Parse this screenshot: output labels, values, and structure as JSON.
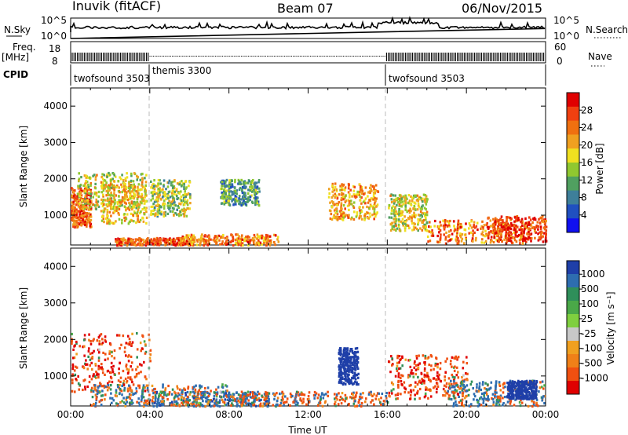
{
  "header": {
    "station": "Inuvik (fitACF)",
    "beam": "Beam 07",
    "date": "06/Nov/2015"
  },
  "top_panels": {
    "nsky_label": "N.Sky",
    "nsky_ticks": [
      "10^5",
      "10^0"
    ],
    "nsearch_label": "N.Search",
    "nsearch_ticks": [
      "10^5",
      "10^0"
    ],
    "freq_label": "Freq.",
    "freq_unit": "[MHz]",
    "freq_ticks": [
      "18",
      "8"
    ],
    "nave_label": "Nave",
    "nave_ticks": [
      "60",
      "0"
    ],
    "cpid_label": "CPID",
    "cpid_segments": [
      {
        "label": "twofsound 3503",
        "start_hour": 0,
        "end_hour": 4
      },
      {
        "label": "themis 3300",
        "start_hour": 4,
        "end_hour": 16
      },
      {
        "label": "twofsound 3503",
        "start_hour": 16,
        "end_hour": 24
      }
    ]
  },
  "chart_data": [
    {
      "type": "heatmap",
      "name": "power",
      "ylabel": "Slant Range [km]",
      "xlabel": "",
      "xlim": [
        0,
        24
      ],
      "ylim": [
        180,
        4500
      ],
      "yticks": [
        "1000",
        "2000",
        "3000",
        "4000"
      ],
      "colorbar": {
        "label": "Power [dB]",
        "ticks": [
          "4",
          "8",
          "12",
          "16",
          "20",
          "24",
          "28"
        ],
        "colors": [
          "#1010f0",
          "#2050c0",
          "#3e7f9a",
          "#50a060",
          "#90c830",
          "#f0e020",
          "#f0a020",
          "#f07010",
          "#f04010",
          "#e00000"
        ]
      },
      "scatter_regions": [
        {
          "x": [
            0.0,
            1.0
          ],
          "y": [
            700,
            1800
          ],
          "value": 26
        },
        {
          "x": [
            0.3,
            3.8
          ],
          "y": [
            1200,
            2200
          ],
          "value": 18
        },
        {
          "x": [
            1.5,
            3.8
          ],
          "y": [
            800,
            1900
          ],
          "value": 20
        },
        {
          "x": [
            2.2,
            6.2
          ],
          "y": [
            200,
            400
          ],
          "value": 26
        },
        {
          "x": [
            4.0,
            6.0
          ],
          "y": [
            1000,
            2000
          ],
          "value": 16
        },
        {
          "x": [
            5.5,
            10.5
          ],
          "y": [
            200,
            500
          ],
          "value": 24
        },
        {
          "x": [
            7.5,
            9.5
          ],
          "y": [
            1300,
            2000
          ],
          "value": 12
        },
        {
          "x": [
            13.0,
            15.5
          ],
          "y": [
            900,
            1900
          ],
          "value": 22
        },
        {
          "x": [
            16.0,
            18.0
          ],
          "y": [
            600,
            1600
          ],
          "value": 18
        },
        {
          "x": [
            18.0,
            23.0
          ],
          "y": [
            250,
            900
          ],
          "value": 24
        },
        {
          "x": [
            21.0,
            24.0
          ],
          "y": [
            300,
            1000
          ],
          "value": 28
        }
      ]
    },
    {
      "type": "heatmap",
      "name": "velocity",
      "ylabel": "Slant Range [km]",
      "xlabel": "Time UT",
      "xlim": [
        0,
        24
      ],
      "ylim": [
        180,
        4500
      ],
      "xticks": [
        "00:00",
        "04:00",
        "08:00",
        "12:00",
        "16:00",
        "20:00",
        "00:00"
      ],
      "yticks": [
        "1000",
        "2000",
        "3000",
        "4000"
      ],
      "colorbar": {
        "label": "Velocity [m s⁻¹]",
        "ticks": [
          "1000",
          "500",
          "100",
          "25",
          "-25",
          "-100",
          "-500",
          "-1000"
        ],
        "colors": [
          "#1f3fa8",
          "#2e6db0",
          "#2f8f5a",
          "#4aa848",
          "#7fcf3f",
          "#c8c8c8",
          "#f0a020",
          "#f08018",
          "#f05010",
          "#e00000"
        ]
      },
      "scatter_regions": [
        {
          "x": [
            0.0,
            4.0
          ],
          "y": [
            600,
            2200
          ],
          "value": -200
        },
        {
          "x": [
            1.0,
            8.0
          ],
          "y": [
            200,
            800
          ],
          "value": 20
        },
        {
          "x": [
            4.0,
            10.0
          ],
          "y": [
            200,
            600
          ],
          "value": 100
        },
        {
          "x": [
            8.0,
            16.0
          ],
          "y": [
            200,
            600
          ],
          "value": -50
        },
        {
          "x": [
            13.5,
            14.5
          ],
          "y": [
            800,
            1800
          ],
          "value": 800
        },
        {
          "x": [
            16.0,
            20.0
          ],
          "y": [
            400,
            1600
          ],
          "value": -200
        },
        {
          "x": [
            19.0,
            24.0
          ],
          "y": [
            200,
            900
          ],
          "value": 50
        },
        {
          "x": [
            22.0,
            23.5
          ],
          "y": [
            400,
            900
          ],
          "value": 700
        }
      ]
    }
  ]
}
